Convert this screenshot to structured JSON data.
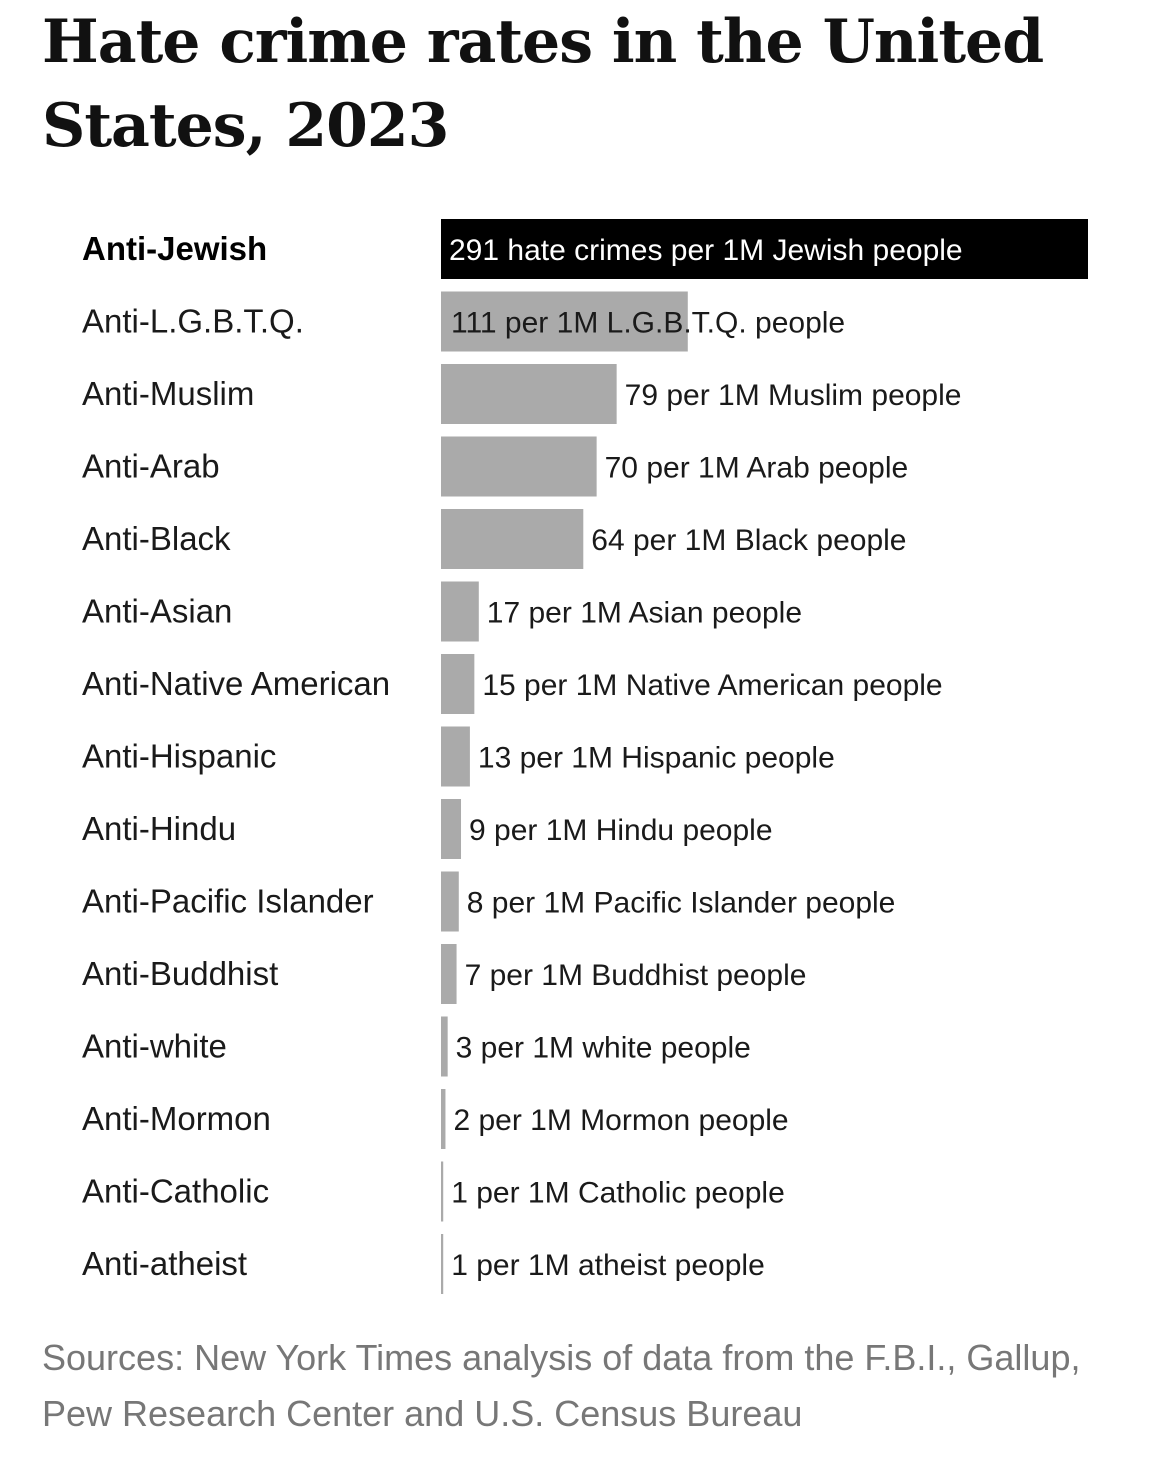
{
  "title": "Hate crime rates in the United States, 2023",
  "sources": "Sources: New York Times analysis of data from the F.B.I., Gallup, Pew Research Center and U.S. Census Bureau",
  "colors": {
    "highlight_bar": "#000000",
    "bar": "#aaaaaa",
    "text": "#1a1a1a",
    "source_text": "#777777"
  },
  "chart_data": {
    "type": "bar",
    "orientation": "horizontal",
    "title": "Hate crime rates in the United States, 2023",
    "xlabel": "",
    "ylabel": "",
    "xlim": [
      0,
      291
    ],
    "grid": false,
    "legend": "none",
    "highlight_index": 0,
    "categories": [
      "Anti-Jewish",
      "Anti-L.G.B.T.Q.",
      "Anti-Muslim",
      "Anti-Arab",
      "Anti-Black",
      "Anti-Asian",
      "Anti-Native American",
      "Anti-Hispanic",
      "Anti-Hindu",
      "Anti-Pacific Islander",
      "Anti-Buddhist",
      "Anti-white",
      "Anti-Mormon",
      "Anti-Catholic",
      "Anti-atheist"
    ],
    "values": [
      291,
      111,
      79,
      70,
      64,
      17,
      15,
      13,
      9,
      8,
      7,
      3,
      2,
      1,
      1
    ],
    "data_labels": [
      "291 hate crimes per 1M Jewish people",
      "111 per 1M L.G.B.T.Q. people",
      "79 per 1M Muslim people",
      "70 per 1M Arab people",
      "64 per 1M Black people",
      "17 per 1M Asian people",
      "15 per 1M Native American people",
      "13 per 1M Hispanic people",
      "9 per 1M Hindu people",
      "8 per 1M Pacific Islander people",
      "7 per 1M Buddhist people",
      "3 per 1M white people",
      "2 per 1M Mormon people",
      "1 per 1M Catholic people",
      "1 per 1M atheist people"
    ]
  }
}
